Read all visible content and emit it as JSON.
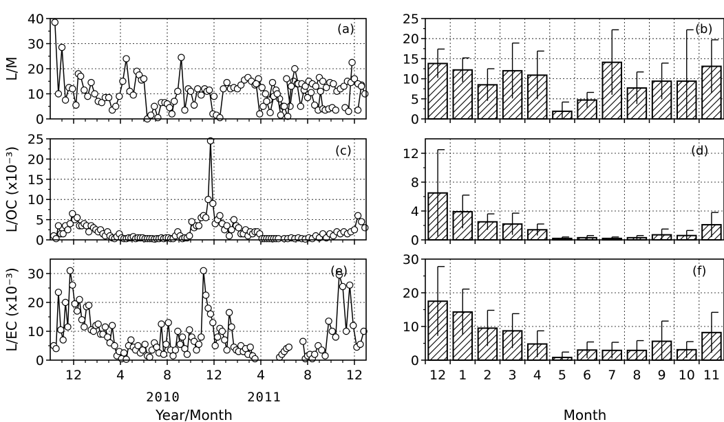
{
  "chart_data": [
    {
      "id": "a",
      "type": "line",
      "panel_label": "(a)",
      "ylabel": "L/M",
      "ylim": [
        0,
        40
      ],
      "yticks": [
        0,
        10,
        20,
        30,
        40
      ],
      "xlim": [
        0,
        27
      ],
      "xticks": [
        2,
        6,
        10,
        14,
        18,
        22,
        26
      ],
      "xtick_labels": [
        "12",
        "4",
        "8",
        "12",
        "4",
        "8",
        "12"
      ],
      "year_labels": [
        "2010",
        "2011"
      ],
      "xlabel": "Year/Month",
      "grid": true,
      "marker": "open-circle",
      "segments": [
        {
          "x": [
            0.4,
            0.7,
            1.0,
            1.3,
            1.6,
            1.9,
            2.2,
            2.4,
            2.6,
            2.9,
            3.2,
            3.5,
            3.8,
            4.1,
            4.4,
            4.7,
            5.0,
            5.3,
            5.6,
            5.9,
            6.2,
            6.5,
            6.8,
            7.1,
            7.4,
            7.6,
            7.8,
            8.0,
            8.3,
            8.6,
            8.9,
            9.2,
            9.5,
            9.8,
            10.0,
            10.2
          ],
          "y": [
            38.5,
            10.0,
            28.5,
            7.5,
            12.5,
            12.0,
            5.5,
            18.0,
            17.0,
            11.5,
            9.0,
            14.5,
            10.0,
            7.0,
            6.5,
            8.5,
            8.5,
            3.5,
            5.0,
            9.0,
            15.0,
            24.0,
            11.0,
            9.5,
            19.0,
            17.5,
            15.5,
            16.0,
            0.0,
            1.5,
            5.0,
            0.5,
            6.5,
            6.5,
            6.0,
            4.5
          ]
        },
        {
          "x": [
            10.4,
            10.6,
            10.9,
            11.2,
            11.5,
            11.8,
            12.0,
            12.3,
            12.6,
            12.9,
            13.2,
            13.4,
            13.6,
            13.9,
            14.2,
            14.5,
            14.8,
            15.1,
            15.4,
            15.7,
            16.0,
            16.3,
            16.6,
            16.9,
            17.2,
            17.5,
            17.8,
            18.1,
            18.4,
            18.7,
            19.0,
            19.3,
            19.6,
            19.9
          ],
          "y": [
            2.0,
            7.0,
            11.0,
            24.5,
            3.5,
            12.0,
            11.0,
            5.5,
            12.0,
            9.5,
            12.0,
            11.0,
            11.5,
            2.0,
            1.5,
            0.5,
            12.0,
            14.5,
            12.0,
            12.5,
            12.0,
            13.5,
            15.5,
            16.5,
            15.0,
            13.5,
            16.0,
            12.5,
            10.0,
            7.5,
            14.5,
            11.5,
            8.0,
            5.0
          ]
        },
        {
          "x": [
            20.2,
            20.5,
            20.8,
            21.1,
            21.4,
            21.7,
            22.0,
            22.3,
            22.6,
            22.9,
            23.1,
            23.3
          ],
          "y": [
            16.0,
            5.0,
            15.0,
            14.0,
            5.0,
            11.5,
            8.5,
            10.5,
            5.5,
            3.5,
            11.0,
            4.0
          ]
        },
        {
          "x": [
            23.5,
            23.8,
            24.1,
            24.4
          ],
          "y": [
            3.5,
            4.0,
            4.5,
            3.5
          ]
        },
        {
          "x": [
            25.2,
            25.5,
            25.8
          ],
          "y": [
            4.5,
            3.0,
            22.5
          ]
        },
        {
          "x": [
            26.3,
            26.6,
            26.9
          ],
          "y": [
            3.5,
            13.5,
            10.0
          ]
        },
        {
          "x": [
            14.0
          ],
          "y": [
            9.0
          ]
        },
        {
          "x": [
            17.6,
            17.9,
            18.2,
            18.5,
            18.8,
            19.1,
            19.4,
            19.7,
            20.0,
            20.3,
            20.6,
            20.9,
            21.2,
            21.5,
            21.8,
            22.1,
            22.4,
            22.7,
            23.0,
            23.3,
            23.6,
            23.9,
            24.2,
            24.5,
            24.8,
            25.1,
            25.4,
            25.7,
            26.0,
            26.3,
            26.6
          ],
          "y": [
            14.0,
            2.0,
            5.0,
            7.0,
            2.5,
            9.0,
            10.0,
            1.5,
            5.0,
            1.0,
            13.0,
            20.0,
            14.0,
            14.0,
            13.0,
            15.0,
            14.0,
            13.0,
            16.5,
            15.0,
            12.5,
            14.5,
            14.0,
            11.0,
            12.0,
            13.0,
            15.0,
            14.5,
            16.0,
            14.0,
            13.0
          ]
        }
      ]
    },
    {
      "id": "c",
      "type": "line",
      "panel_label": "(c)",
      "ylabel": "L/OC (x10⁻³)",
      "ylim": [
        0,
        25
      ],
      "yticks": [
        0,
        5,
        10,
        15,
        20,
        25
      ],
      "xlim": [
        0,
        27
      ],
      "xticks": [
        2,
        6,
        10,
        14,
        18,
        22,
        26
      ],
      "xtick_labels": [
        "12",
        "4",
        "8",
        "12",
        "4",
        "8",
        "12"
      ],
      "grid": true,
      "marker": "open-circle",
      "segments": [
        {
          "x": [
            0.3,
            0.5,
            0.7,
            0.9,
            1.1,
            1.3,
            1.5,
            1.7,
            1.9,
            2.1,
            2.3,
            2.5,
            2.7,
            2.9,
            3.1,
            3.3,
            3.5,
            3.7,
            3.9,
            4.1,
            4.3,
            4.5,
            4.7,
            4.9,
            5.1,
            5.3,
            5.5,
            5.7,
            5.9,
            6.1,
            6.3,
            6.5,
            6.7,
            6.9,
            7.1,
            7.3,
            7.5,
            7.7,
            7.9,
            8.1,
            8.3,
            8.5,
            8.7,
            8.9,
            9.1,
            9.3,
            9.5,
            9.7,
            9.9,
            10.1,
            10.3,
            10.5,
            10.7,
            10.9,
            11.1,
            11.3,
            11.5,
            11.7,
            11.9,
            12.1,
            12.3,
            12.5,
            12.7,
            12.9,
            13.1,
            13.3,
            13.5,
            13.7,
            13.9,
            14.1,
            14.3,
            14.5,
            14.7,
            14.9,
            15.1,
            15.3,
            15.5,
            15.7,
            15.9,
            16.1,
            16.3,
            16.5,
            16.7,
            16.9,
            17.1,
            17.3,
            17.5,
            17.7,
            17.9,
            18.1,
            18.3,
            18.5,
            18.7,
            18.9,
            19.1,
            19.3,
            19.5
          ],
          "y": [
            1.0,
            0.3,
            3.5,
            1.5,
            1.5,
            3.5,
            2.5,
            4.0,
            6.5,
            5.0,
            5.5,
            3.5,
            3.5,
            4.0,
            3.5,
            2.0,
            3.5,
            3.0,
            2.5,
            2.0,
            2.5,
            1.5,
            1.0,
            2.0,
            1.0,
            0.5,
            0.3,
            0.8,
            1.5,
            0.5,
            0.3,
            0.3,
            0.5,
            0.5,
            0.8,
            0.3,
            0.5,
            0.5,
            0.5,
            0.3,
            0.3,
            0.3,
            0.3,
            0.2,
            0.3,
            0.3,
            0.5,
            0.3,
            0.5,
            0.5,
            0.3,
            0.3,
            1.0,
            2.0,
            1.0,
            0.3,
            0.5,
            0.5,
            1.0,
            4.5,
            3.0,
            3.5,
            3.5,
            5.5,
            6.0,
            5.5,
            10.0,
            24.5,
            9.0,
            4.0,
            5.0,
            6.0,
            4.0,
            2.5,
            3.5,
            1.0,
            2.5,
            5.0,
            3.5,
            3.0,
            1.5,
            1.5,
            2.5,
            1.0,
            2.0,
            1.5,
            2.0,
            2.0,
            1.5,
            0.3,
            0.3,
            0.3,
            0.3,
            0.3,
            0.3,
            0.3,
            0.3
          ]
        },
        {
          "x": [
            20.0,
            20.3,
            20.6,
            20.9,
            21.2,
            21.5,
            21.8,
            22.1,
            22.4,
            22.7,
            23.0,
            23.3,
            23.6,
            23.9,
            24.2,
            24.5,
            24.8,
            25.1,
            25.4,
            25.7,
            26.0,
            26.3,
            26.6,
            26.9
          ],
          "y": [
            0.3,
            0.3,
            0.5,
            0.3,
            0.5,
            0.3,
            0.2,
            0.5,
            0.3,
            1.0,
            0.5,
            1.5,
            0.5,
            1.5,
            1.0,
            2.0,
            1.5,
            2.0,
            1.5,
            2.0,
            2.5,
            6.0,
            4.5,
            3.0
          ]
        }
      ]
    },
    {
      "id": "e",
      "type": "line",
      "panel_label": "(e)",
      "ylabel": "L/EC (x10⁻³)",
      "ylim": [
        0,
        35
      ],
      "yticks": [
        0,
        10,
        20,
        30
      ],
      "xlim": [
        0,
        27
      ],
      "xticks": [
        2,
        6,
        10,
        14,
        18,
        22,
        26
      ],
      "xtick_labels": [
        "12",
        "4",
        "8",
        "12",
        "4",
        "8",
        "12"
      ],
      "grid": true,
      "marker": "open-circle",
      "segments": [
        {
          "x": [
            0.3,
            0.5,
            0.7,
            0.9,
            1.1,
            1.3,
            1.5,
            1.7,
            1.9,
            2.1,
            2.3,
            2.5,
            2.7,
            2.9,
            3.1,
            3.3,
            3.5,
            3.7,
            3.9,
            4.1,
            4.3,
            4.5,
            4.7,
            4.9,
            5.1,
            5.3,
            5.5,
            5.7,
            5.9,
            6.1,
            6.3,
            6.5,
            6.7,
            6.9,
            7.1,
            7.3,
            7.5,
            7.7,
            7.9,
            8.1,
            8.3,
            8.5,
            8.7,
            8.9,
            9.1,
            9.3,
            9.5,
            9.7,
            9.9,
            10.1,
            10.3,
            10.5,
            10.7,
            10.9,
            11.1,
            11.3,
            11.5,
            11.7,
            11.9,
            12.1,
            12.3,
            12.5,
            12.7,
            12.9,
            13.1,
            13.3,
            13.5,
            13.7,
            13.9,
            14.1,
            14.3,
            14.5,
            14.7,
            14.9,
            15.1,
            15.3,
            15.5,
            15.7,
            15.9,
            16.1,
            16.3,
            16.5,
            16.7,
            16.9,
            17.1,
            17.3,
            17.5
          ],
          "y": [
            5.0,
            4.0,
            23.5,
            10.5,
            7.0,
            20.0,
            11.5,
            31.0,
            26.0,
            19.5,
            17.0,
            21.0,
            14.0,
            11.5,
            18.5,
            19.0,
            10.5,
            10.0,
            12.0,
            12.5,
            9.0,
            9.0,
            11.5,
            8.0,
            6.0,
            12.0,
            5.0,
            1.5,
            3.0,
            0.5,
            2.5,
            0.3,
            5.0,
            7.0,
            4.5,
            3.5,
            5.0,
            2.5,
            3.5,
            5.5,
            1.5,
            1.0,
            3.5,
            6.0,
            4.5,
            2.5,
            12.5,
            2.0,
            5.5,
            13.0,
            3.5,
            1.5,
            3.5,
            10.0,
            5.5,
            8.0,
            4.0,
            2.0,
            10.5,
            8.0,
            6.5,
            3.5,
            5.5,
            8.0,
            31.0,
            22.5,
            18.0,
            16.0,
            13.0,
            5.0,
            8.0,
            11.0,
            10.0,
            7.0,
            3.5,
            16.5,
            11.5,
            4.5,
            3.5,
            3.0,
            5.0,
            3.0,
            4.0,
            2.0,
            4.5,
            1.5,
            0.5
          ]
        },
        {
          "x": [
            19.6,
            19.8,
            20.0,
            20.2,
            20.4
          ],
          "y": [
            1.0,
            2.0,
            3.0,
            4.0,
            4.5
          ]
        },
        {
          "x": [
            21.6,
            21.8,
            22.0,
            22.2,
            22.4,
            22.6,
            22.9,
            23.2,
            23.5,
            23.8,
            24.1,
            24.4,
            24.7,
            25.0,
            25.3,
            25.6,
            25.9,
            26.2,
            26.5,
            26.8
          ],
          "y": [
            6.5,
            0.5,
            1.5,
            2.0,
            0.5,
            2.0,
            5.0,
            3.5,
            1.5,
            13.5,
            10.0,
            8.0,
            29.5,
            25.5,
            10.0,
            26.0,
            12.0,
            4.5,
            5.5,
            10.0
          ]
        }
      ]
    },
    {
      "id": "b",
      "type": "bar",
      "panel_label": "(b)",
      "ylim": [
        0,
        25
      ],
      "yticks": [
        0,
        5,
        10,
        15,
        20,
        25
      ],
      "categories": [
        "12",
        "1",
        "2",
        "3",
        "4",
        "5",
        "6",
        "7",
        "8",
        "9",
        "10",
        "11"
      ],
      "values": [
        13.8,
        12.2,
        8.5,
        12.0,
        10.9,
        1.9,
        4.7,
        14.1,
        7.7,
        9.4,
        9.4,
        13.1
      ],
      "errors": [
        3.6,
        3.0,
        4.0,
        6.9,
        6.0,
        2.3,
        1.9,
        8.1,
        4.0,
        4.5,
        12.8,
        6.6
      ],
      "grid": true,
      "hatch": "diagonal"
    },
    {
      "id": "d",
      "type": "bar",
      "panel_label": "(d)",
      "ylim": [
        0,
        14
      ],
      "yticks": [
        0,
        4,
        8,
        12
      ],
      "categories": [
        "12",
        "1",
        "2",
        "3",
        "4",
        "5",
        "6",
        "7",
        "8",
        "9",
        "10",
        "11"
      ],
      "values": [
        6.5,
        3.9,
        2.5,
        2.2,
        1.4,
        0.2,
        0.3,
        0.2,
        0.3,
        0.7,
        0.6,
        2.1
      ],
      "errors": [
        6.0,
        2.3,
        1.1,
        1.5,
        0.8,
        0.2,
        0.3,
        0.2,
        0.3,
        0.8,
        0.7,
        1.7
      ],
      "grid": true,
      "hatch": "diagonal"
    },
    {
      "id": "f",
      "type": "bar",
      "panel_label": "(f)",
      "ylim": [
        0,
        30
      ],
      "yticks": [
        0,
        10,
        20,
        30
      ],
      "categories": [
        "12",
        "1",
        "2",
        "3",
        "4",
        "5",
        "6",
        "7",
        "8",
        "9",
        "10",
        "11"
      ],
      "values": [
        17.5,
        14.3,
        9.5,
        8.7,
        4.8,
        0.8,
        3.0,
        2.9,
        2.9,
        5.6,
        3.1,
        8.2
      ],
      "errors": [
        10.3,
        6.8,
        5.3,
        5.1,
        3.9,
        1.6,
        2.4,
        2.4,
        2.9,
        6.0,
        2.4,
        6.0
      ],
      "xlabel": "Month",
      "grid": true,
      "hatch": "diagonal"
    }
  ]
}
